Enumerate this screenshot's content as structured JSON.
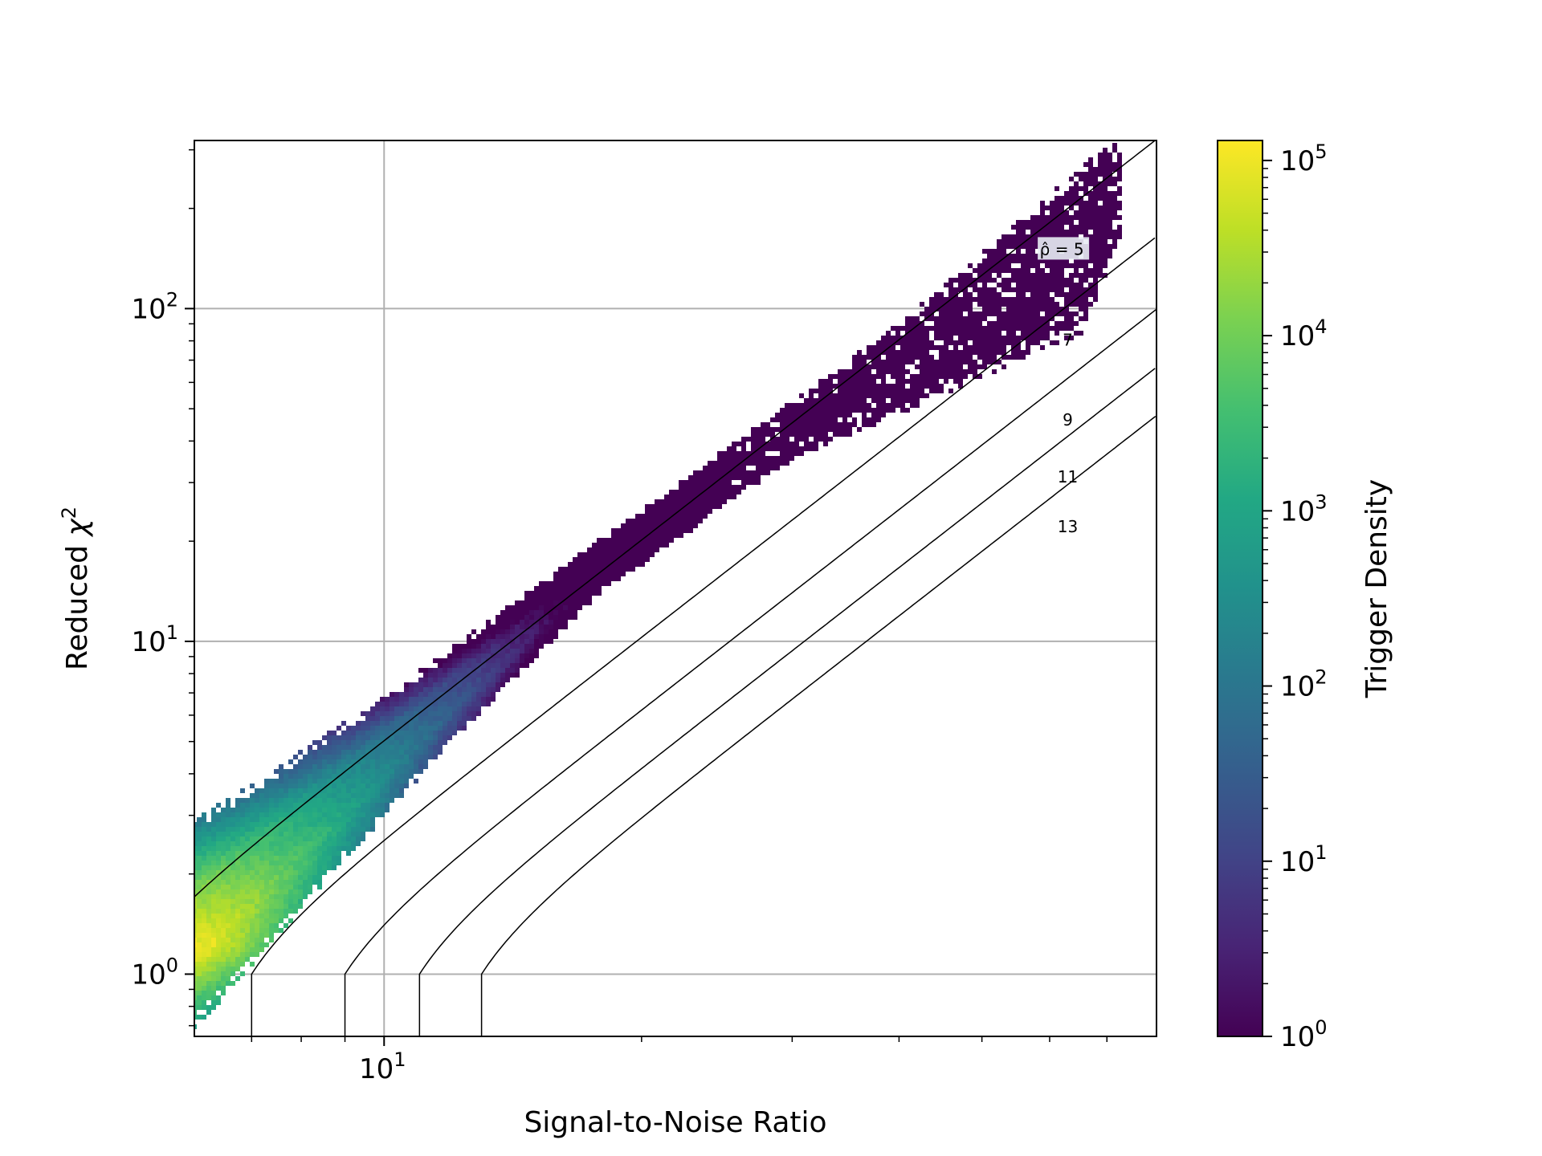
{
  "chart_data": {
    "type": "heatmap",
    "subtype": "hexbin",
    "title": "",
    "xlabel": "Signal-to-Noise Ratio",
    "ylabel": "Reduced χ²",
    "xscale": "log",
    "yscale": "log",
    "xlim": [
      6.0,
      80.0
    ],
    "ylim": [
      0.65,
      320
    ],
    "grid": true,
    "x_ticks": [
      {
        "value": 10,
        "base": "10",
        "exp": "1"
      }
    ],
    "y_ticks": [
      {
        "value": 1,
        "base": "10",
        "exp": "0"
      },
      {
        "value": 10,
        "base": "10",
        "exp": "1"
      },
      {
        "value": 100,
        "base": "10",
        "exp": "2"
      }
    ],
    "colorbar": {
      "label": "Trigger Density",
      "scale": "log",
      "colormap": "viridis",
      "range": [
        1,
        130000
      ],
      "ticks": [
        {
          "value": 1,
          "base": "10",
          "exp": "0"
        },
        {
          "value": 10,
          "base": "10",
          "exp": "1"
        },
        {
          "value": 100,
          "base": "10",
          "exp": "2"
        },
        {
          "value": 1000,
          "base": "10",
          "exp": "3"
        },
        {
          "value": 10000,
          "base": "10",
          "exp": "4"
        },
        {
          "value": 100000,
          "base": "10",
          "exp": "5"
        }
      ]
    },
    "density_region": {
      "description_points_upper_edge": [
        [
          6.0,
          2.9
        ],
        [
          10,
          6.8
        ],
        [
          20,
          25
        ],
        [
          40,
          90
        ],
        [
          70,
          310
        ]
      ],
      "description_points_lower_edge": [
        [
          6.0,
          0.68
        ],
        [
          9.0,
          2.2
        ],
        [
          12,
          5.0
        ],
        [
          18,
          14
        ],
        [
          30,
          35
        ],
        [
          45,
          55
        ],
        [
          66,
          85
        ],
        [
          73,
          170
        ]
      ],
      "peak": {
        "x": 6.1,
        "y": 1.2,
        "density": 100000
      }
    },
    "contours": [
      {
        "label": "ρ̂ = 5",
        "rho": 5,
        "x_start": 6.0,
        "label_pos": [
          62,
          150
        ]
      },
      {
        "label": "7",
        "rho": 7,
        "x_start": 7.0,
        "label_pos": [
          63,
          80
        ]
      },
      {
        "label": "9",
        "rho": 9,
        "x_start": 9.0,
        "label_pos": [
          63,
          46
        ]
      },
      {
        "label": "11",
        "rho": 11,
        "x_start": 11.0,
        "label_pos": [
          63,
          31
        ]
      },
      {
        "label": "13",
        "rho": 13,
        "x_start": 13.0,
        "label_pos": [
          63,
          22
        ]
      }
    ],
    "colors": {
      "grid": "#b0b0b0",
      "contour": "#000000",
      "viridis": [
        "#440154",
        "#482475",
        "#414487",
        "#355f8d",
        "#2a788e",
        "#21918c",
        "#22a884",
        "#44bf70",
        "#7ad151",
        "#bddf26",
        "#fde725"
      ]
    }
  }
}
